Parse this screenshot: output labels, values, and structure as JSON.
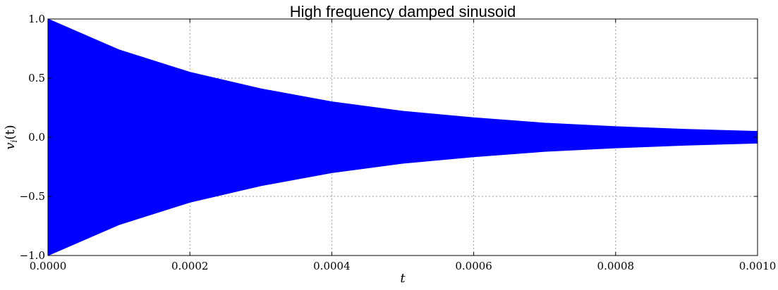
{
  "chart_data": {
    "type": "area",
    "title": "High frequency damped sinusoid",
    "xlabel": "t",
    "ylabel": "v_i(t)",
    "ylabel_main": "v",
    "ylabel_sub": "i",
    "ylabel_rest": "(t)",
    "xlim": [
      0.0,
      0.001
    ],
    "ylim": [
      -1.0,
      1.0
    ],
    "grid": true,
    "x_ticks": [
      0.0,
      0.0002,
      0.0004,
      0.0006,
      0.0008,
      0.001
    ],
    "x_tick_labels": [
      "0.0000",
      "0.0002",
      "0.0004",
      "0.0006",
      "0.0008",
      "0.0010"
    ],
    "y_ticks": [
      1.0,
      0.5,
      0.0,
      -0.5,
      -1.0
    ],
    "y_tick_labels": [
      "1.0",
      "0.5",
      "0.0",
      "−0.5",
      "−1.0"
    ],
    "series": [
      {
        "color": "#0000ff",
        "x": [
          0.0,
          0.0001,
          0.0002,
          0.0003,
          0.0004,
          0.0005,
          0.0006,
          0.0007,
          0.0008,
          0.0009,
          0.001
        ],
        "upper": [
          1.0,
          0.74,
          0.55,
          0.41,
          0.3,
          0.22,
          0.165,
          0.12,
          0.09,
          0.067,
          0.05
        ],
        "lower": [
          -1.0,
          -0.74,
          -0.55,
          -0.41,
          -0.3,
          -0.22,
          -0.165,
          -0.12,
          -0.09,
          -0.067,
          -0.05
        ]
      }
    ]
  }
}
